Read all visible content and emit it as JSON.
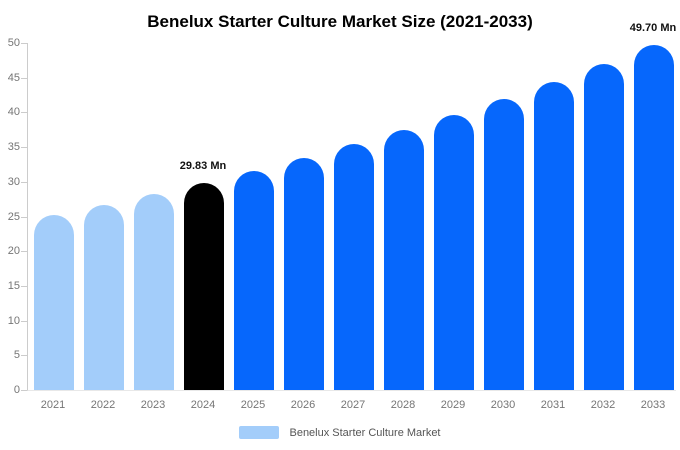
{
  "chart_data": {
    "type": "bar",
    "title": "Benelux Starter Culture Market Size (2021-2033)",
    "categories": [
      "2021",
      "2022",
      "2023",
      "2024",
      "2025",
      "2026",
      "2027",
      "2028",
      "2029",
      "2030",
      "2031",
      "2032",
      "2033"
    ],
    "values": [
      25.2,
      26.6,
      28.2,
      29.83,
      31.6,
      33.4,
      35.4,
      37.4,
      39.6,
      41.9,
      44.4,
      47.0,
      49.7
    ],
    "unit": "Mn",
    "xlabel": "",
    "ylabel": "",
    "ylim": [
      0,
      50
    ],
    "ytick_step": 5,
    "grid": false,
    "annotations": [
      {
        "category": "2024",
        "text": "29.83 Mn"
      },
      {
        "category": "2033",
        "text": "49.70 Mn"
      }
    ],
    "colors": {
      "historical": "#a3cdfa",
      "highlight": "#000000",
      "forecast": "#0667fc"
    },
    "bar_color_keys": [
      "historical",
      "historical",
      "historical",
      "highlight",
      "forecast",
      "forecast",
      "forecast",
      "forecast",
      "forecast",
      "forecast",
      "forecast",
      "forecast",
      "forecast"
    ],
    "axis_color": "#cccccc",
    "baseline_color": "#e8e8e8",
    "tick_label_color": "#757575",
    "legend": {
      "label": "Benelux Starter Culture Market",
      "position": "bottom",
      "swatch_color": "#a3cdfa"
    }
  }
}
